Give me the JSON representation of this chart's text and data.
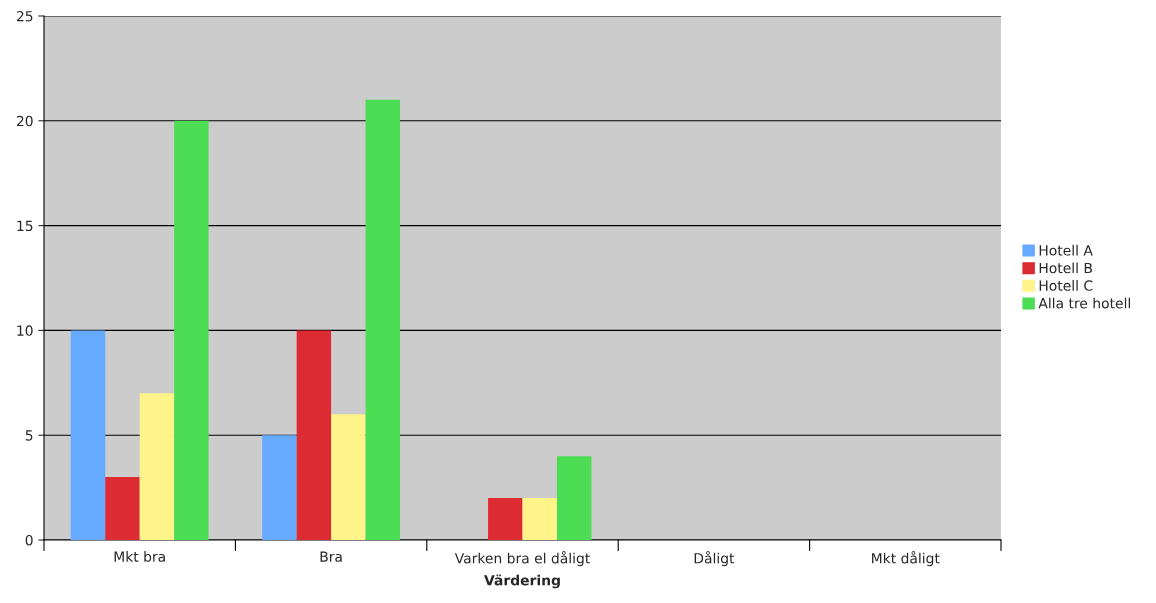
{
  "chart_data": {
    "type": "bar",
    "xlabel": "Värdering",
    "categories": [
      "Mkt bra",
      "Bra",
      "Varken bra el dåligt",
      "Dåligt",
      "Mkt dåligt"
    ],
    "series": [
      {
        "name": "Hotell A",
        "color": "#66aaff",
        "values": [
          10,
          5,
          0,
          0,
          0
        ]
      },
      {
        "name": "Hotell B",
        "color": "#dd2b33",
        "values": [
          3,
          10,
          2,
          0,
          0
        ]
      },
      {
        "name": "Hotell C",
        "color": "#fff38a",
        "values": [
          7,
          6,
          2,
          0,
          0
        ]
      },
      {
        "name": "Alla tre hotell",
        "color": "#4ddd55",
        "values": [
          20,
          21,
          4,
          0,
          0
        ]
      }
    ],
    "ylim": [
      0,
      25
    ],
    "yticks": [
      0,
      5,
      10,
      15,
      20,
      25
    ],
    "grid": "y",
    "legend": "right"
  }
}
